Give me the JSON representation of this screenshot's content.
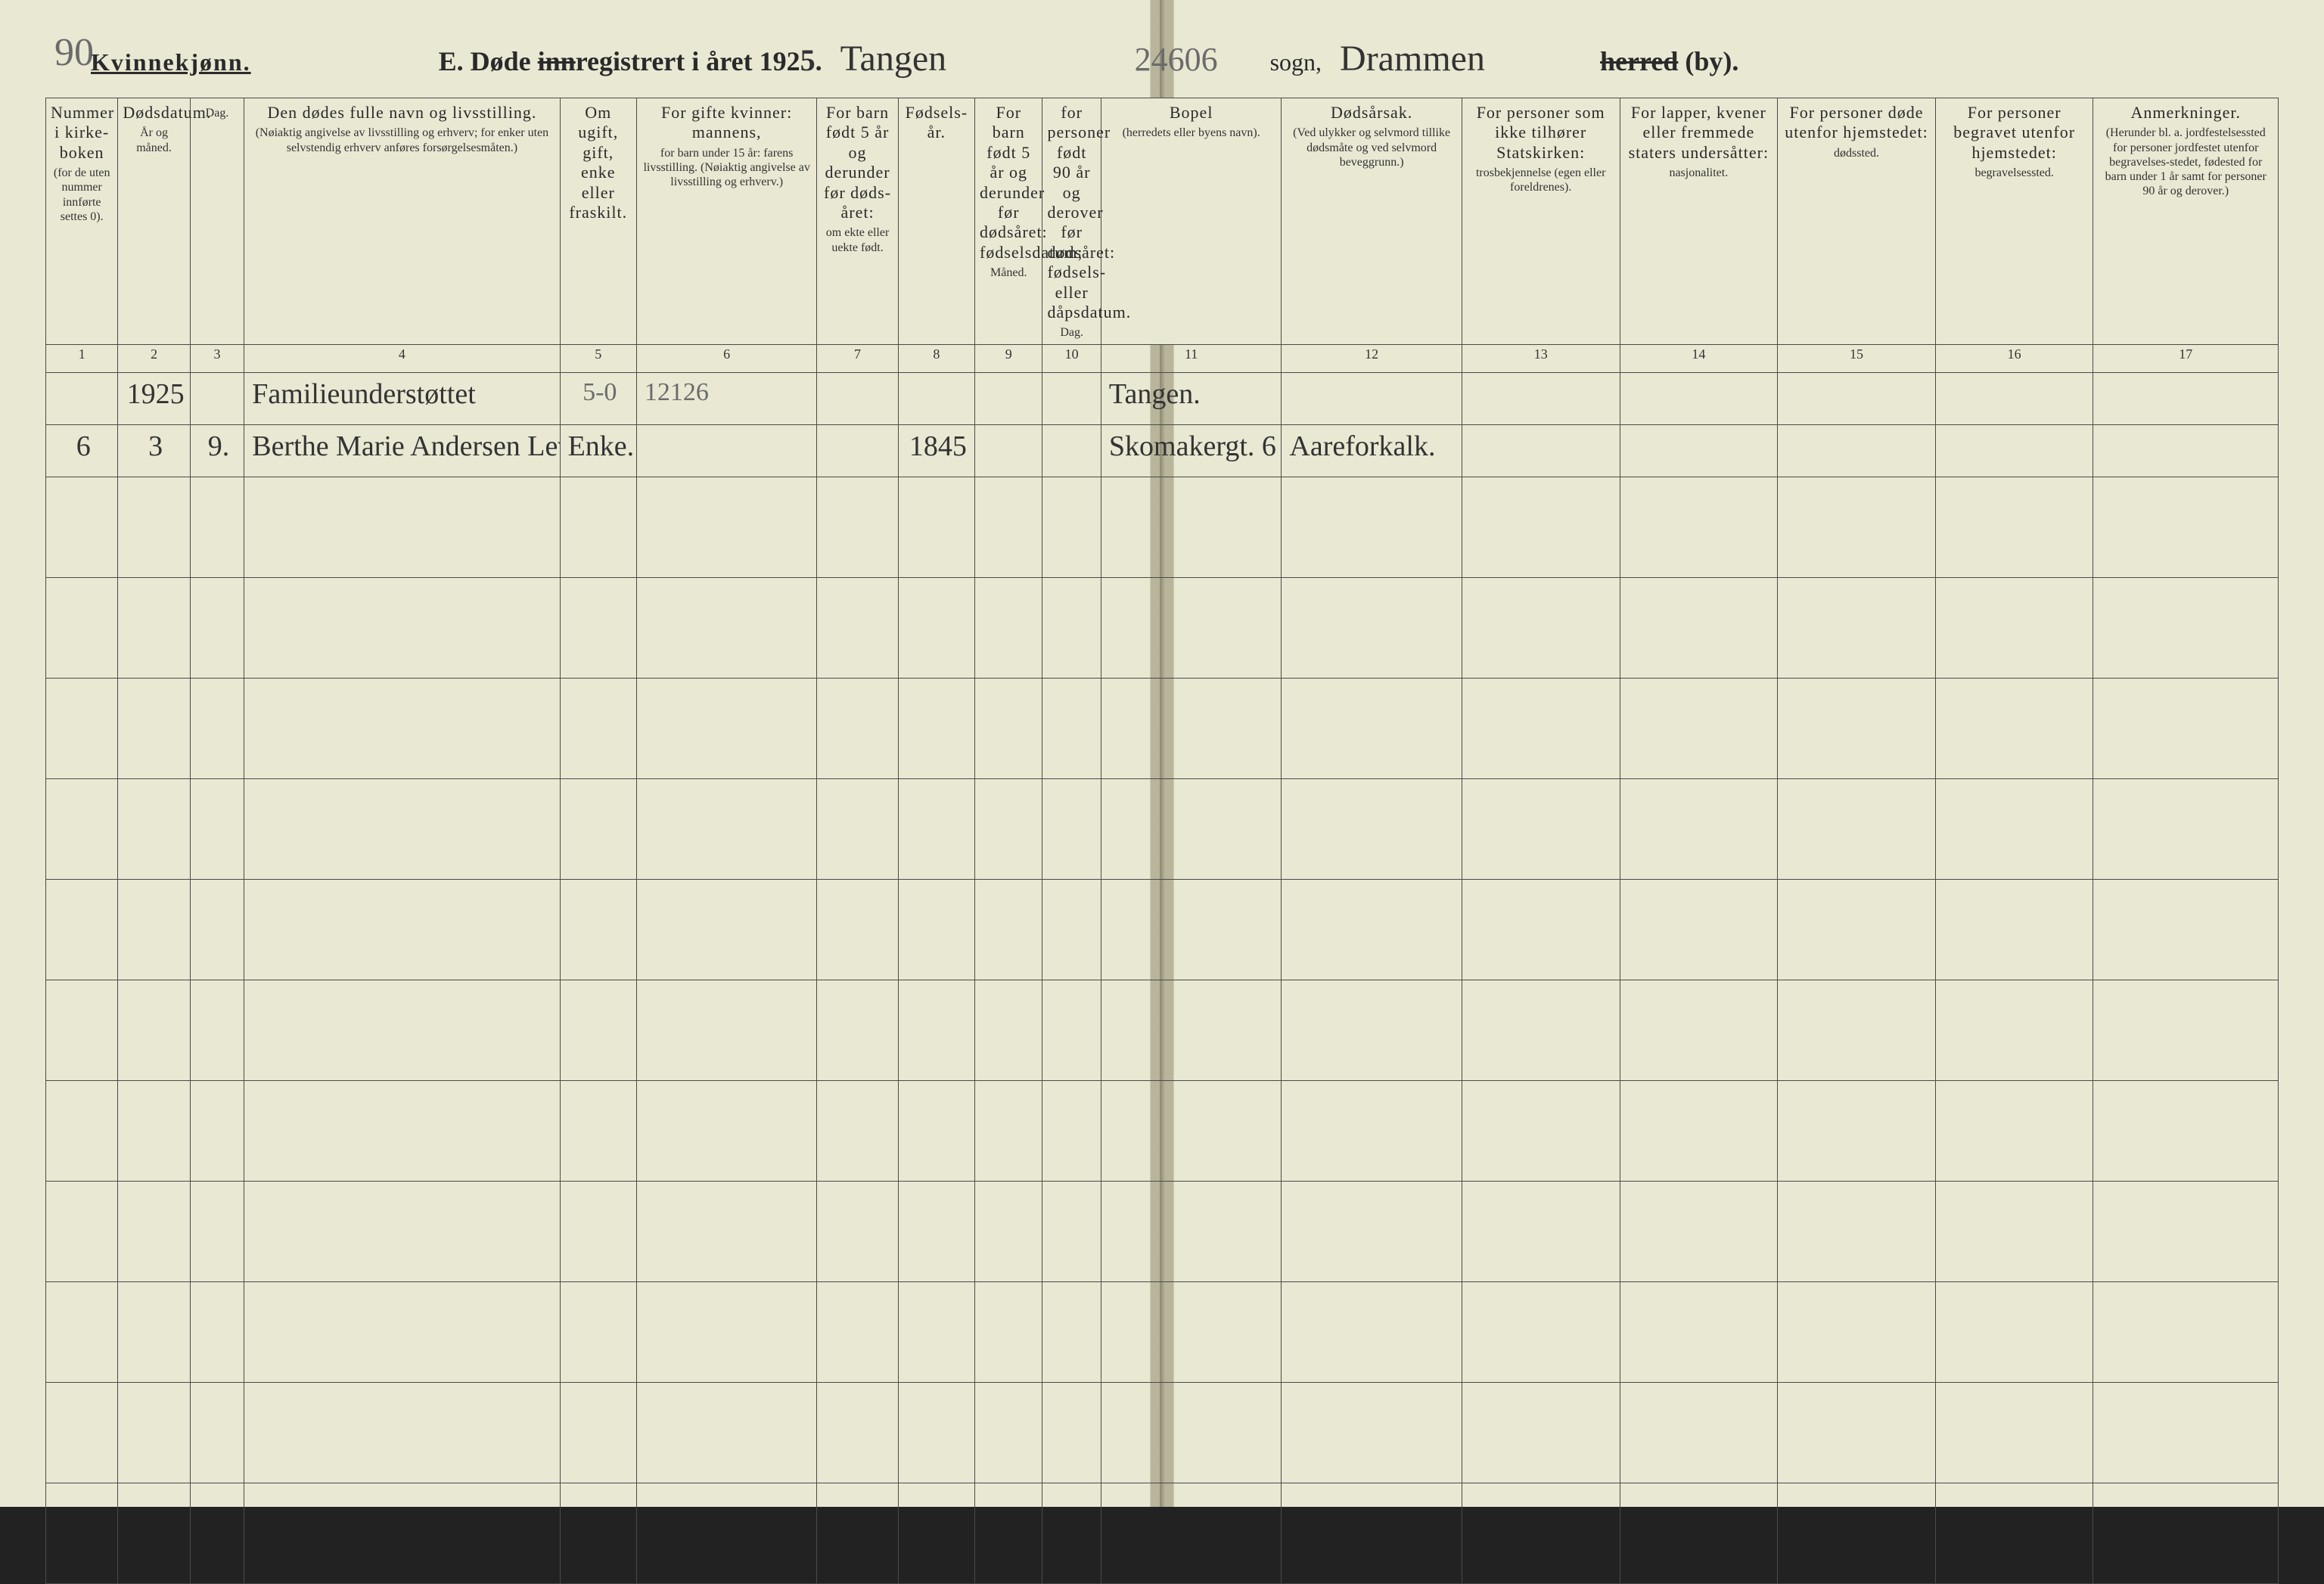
{
  "header": {
    "gender_label": "Kvinnekjønn.",
    "title_prefix": "E.  Døde ",
    "title_struck_word": "inn",
    "title_rest": "registrert i året 192",
    "year_suffix_handwritten": "5",
    "title_punct": ".",
    "sogn_label": "sogn,",
    "herred_struck": "herred",
    "by_suffix": " (by).",
    "sogn_value": "Tangen",
    "herred_value": "Drammen",
    "archive_number": "24606",
    "corner_mark": "90"
  },
  "columns": [
    {
      "num": "1",
      "main": "Nummer i kirke-boken",
      "sub": "(for de uten nummer innførte settes 0).",
      "w": "3.2%"
    },
    {
      "num": "2",
      "main": "Dødsdatum.",
      "sub": "År og måned.",
      "w": "3.2%"
    },
    {
      "num": "3",
      "main": "",
      "sub": "Dag.",
      "w": "2.4%"
    },
    {
      "num": "4",
      "main": "Den dødes fulle navn og livsstilling.",
      "sub": "(Nøiaktig angivelse av livsstilling og erhverv; for enker uten selvstendig erhverv anføres forsørgelsesmåten.)",
      "w": "14%"
    },
    {
      "num": "5",
      "main": "Om ugift, gift, enke eller fraskilt.",
      "sub": "",
      "w": "3.4%"
    },
    {
      "num": "6",
      "main": "For gifte kvinner: mannens,",
      "sub": "for barn under 15 år: farens livsstilling. (Nøiaktig angivelse av livsstilling og erhverv.)",
      "w": "8%"
    },
    {
      "num": "7",
      "main": "For barn født 5 år og derunder før døds-året:",
      "sub": "om ekte eller uekte født.",
      "w": "3.6%"
    },
    {
      "num": "8",
      "main": "Fødsels-år.",
      "sub": "",
      "w": "3.4%"
    },
    {
      "num": "9",
      "main": "For barn født 5 år og derunder før dødsåret: fødselsdatum;",
      "sub": "Måned.",
      "w": "3%"
    },
    {
      "num": "10",
      "main": "for personer født 90 år og derover før dødsåret: fødsels- eller dåpsdatum.",
      "sub": "Dag.",
      "w": "2.6%"
    },
    {
      "num": "11",
      "main": "Bopel",
      "sub": "(herredets eller byens navn).",
      "w": "8%"
    },
    {
      "num": "12",
      "main": "Dødsårsak.",
      "sub": "(Ved ulykker og selvmord tillike dødsmåte og ved selvmord beveggrunn.)",
      "w": "8%"
    },
    {
      "num": "13",
      "main": "For personer som ikke tilhører Statskirken:",
      "sub": "trosbekjennelse (egen eller foreldrenes).",
      "w": "7%"
    },
    {
      "num": "14",
      "main": "For lapper, kvener eller fremmede staters undersåtter:",
      "sub": "nasjonalitet.",
      "w": "7%"
    },
    {
      "num": "15",
      "main": "For personer døde utenfor hjemstedet:",
      "sub": "dødssted.",
      "w": "7%"
    },
    {
      "num": "16",
      "main": "For personer begravet utenfor hjemstedet:",
      "sub": "begravelsessted.",
      "w": "7%"
    },
    {
      "num": "17",
      "main": "Anmerkninger.",
      "sub": "(Herunder bl. a. jordfestelsessted for personer jordfestet utenfor begravelses-stedet, fødested for barn under 1 år samt for personer 90 år og derover.)",
      "w": "8.2%"
    }
  ],
  "rows": [
    {
      "c1": "",
      "c2": "1925",
      "c3": "",
      "c4": "Familieunderstøttet",
      "c5": "5-0",
      "c6": "12126",
      "c7": "",
      "c8": "",
      "c9": "",
      "c10": "",
      "c11": "Tangen.",
      "c12": "",
      "c13": "",
      "c14": "",
      "c15": "",
      "c16": "",
      "c17": ""
    },
    {
      "c1": "6",
      "c2": "3",
      "c3": "9.",
      "c4": "Berthe Marie Andersen Levstøl",
      "c5": "Enke.",
      "c6": "",
      "c7": "",
      "c8": "1845",
      "c9": "",
      "c10": "",
      "c11": "Skomakergt. 6",
      "c12": "Aareforkalk.",
      "c13": "",
      "c14": "",
      "c15": "",
      "c16": "",
      "c17": ""
    }
  ],
  "blank_row_count": 11,
  "colors": {
    "paper": "#e9e8d3",
    "rule": "#4a4a4a",
    "ink": "#2a2a2a",
    "script": "#333333",
    "pencil": "#6b6b6b"
  }
}
